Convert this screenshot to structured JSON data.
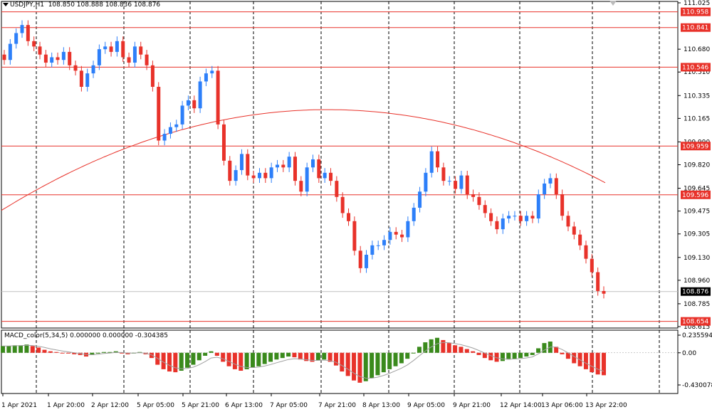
{
  "header": {
    "symbol_label": "USDJPY,H1",
    "ohlc": "108.850 108.888 108.836 108.876"
  },
  "macd": {
    "label": "MACD_color(5,34,5) 0.000000 0.000000 -0.304385"
  },
  "colors": {
    "up": "#2d7ff9",
    "down": "#e8322a",
    "level": "#e8322a",
    "hist_up": "#3a8a1c",
    "hist_down": "#e8322a",
    "ma": "#e8322a",
    "current": "#000000"
  },
  "chart_data": [
    {
      "type": "candlestick",
      "symbol": "USDJPY",
      "timeframe": "H1",
      "price_axis_ticks": [
        "111.025",
        "110.680",
        "110.510",
        "110.335",
        "110.165",
        "109.990",
        "109.820",
        "109.645",
        "109.475",
        "109.305",
        "109.130",
        "108.960",
        "108.785",
        "108.615"
      ],
      "ylim": [
        108.615,
        111.025
      ],
      "horizontal_levels": [
        "110.958",
        "110.841",
        "110.546",
        "109.959",
        "109.596",
        "108.654"
      ],
      "current_price": "108.876",
      "time_axis_labels": [
        "1 Apr 2021",
        "1 Apr 20:00",
        "2 Apr 12:00",
        "5 Apr 05:00",
        "5 Apr 21:00",
        "6 Apr 13:00",
        "7 Apr 05:00",
        "7 Apr 21:00",
        "8 Apr 13:00",
        "9 Apr 05:00",
        "9 Apr 21:00",
        "12 Apr 14:00",
        "13 Apr 06:00",
        "13 Apr 22:00"
      ],
      "close_path": [
        110.6,
        110.72,
        110.8,
        110.86,
        110.74,
        110.7,
        110.64,
        110.58,
        110.62,
        110.6,
        110.66,
        110.56,
        110.52,
        110.4,
        110.5,
        110.56,
        110.68,
        110.7,
        110.66,
        110.74,
        110.62,
        110.58,
        110.7,
        110.64,
        110.56,
        110.4,
        110.0,
        110.05,
        110.1,
        110.12,
        110.26,
        110.3,
        110.24,
        110.44,
        110.5,
        110.52,
        110.12,
        109.85,
        109.7,
        109.78,
        109.9,
        109.74,
        109.72,
        109.76,
        109.72,
        109.8,
        109.82,
        109.8,
        109.88,
        109.7,
        109.62,
        109.8,
        109.86,
        109.72,
        109.76,
        109.7,
        109.58,
        109.46,
        109.4,
        109.18,
        109.05,
        109.15,
        109.22,
        109.22,
        109.26,
        109.32,
        109.3,
        109.28,
        109.4,
        109.5,
        109.62,
        109.76,
        109.92,
        109.8,
        109.7,
        109.7,
        109.64,
        109.74,
        109.6,
        109.58,
        109.52,
        109.46,
        109.4,
        109.34,
        109.42,
        109.44,
        109.44,
        109.4,
        109.44,
        109.42,
        109.6,
        109.68,
        109.72,
        109.6,
        109.44,
        109.36,
        109.3,
        109.22,
        109.12,
        109.02,
        108.88,
        108.86
      ]
    },
    {
      "type": "macd_histogram",
      "name": "MACD_color(5,34,5)",
      "axis_ticks": [
        "0.235594",
        "0.00",
        "-0.430078"
      ],
      "ylim": [
        -0.430078,
        0.235594
      ],
      "values": [
        0.09,
        0.09,
        0.1,
        0.1,
        0.11,
        0.09,
        0.07,
        0.04,
        0.02,
        0.01,
        0.0,
        -0.01,
        -0.02,
        -0.03,
        -0.05,
        -0.03,
        -0.01,
        0.01,
        0.01,
        0.02,
        0.0,
        -0.02,
        0.0,
        0.01,
        -0.02,
        -0.07,
        -0.16,
        -0.22,
        -0.25,
        -0.26,
        -0.24,
        -0.2,
        -0.16,
        -0.1,
        -0.04,
        0.02,
        -0.04,
        -0.12,
        -0.18,
        -0.22,
        -0.24,
        -0.22,
        -0.2,
        -0.18,
        -0.15,
        -0.12,
        -0.09,
        -0.07,
        -0.05,
        -0.06,
        -0.09,
        -0.11,
        -0.12,
        -0.1,
        -0.09,
        -0.12,
        -0.17,
        -0.25,
        -0.31,
        -0.37,
        -0.4,
        -0.38,
        -0.34,
        -0.3,
        -0.26,
        -0.22,
        -0.18,
        -0.14,
        -0.08,
        0.0,
        0.08,
        0.14,
        0.18,
        0.2,
        0.17,
        0.13,
        0.1,
        0.08,
        0.05,
        0.02,
        -0.03,
        -0.07,
        -0.1,
        -0.12,
        -0.11,
        -0.09,
        -0.08,
        -0.07,
        -0.05,
        -0.03,
        0.06,
        0.13,
        0.15,
        0.08,
        -0.02,
        -0.08,
        -0.14,
        -0.18,
        -0.22,
        -0.26,
        -0.29,
        -0.3
      ]
    }
  ]
}
